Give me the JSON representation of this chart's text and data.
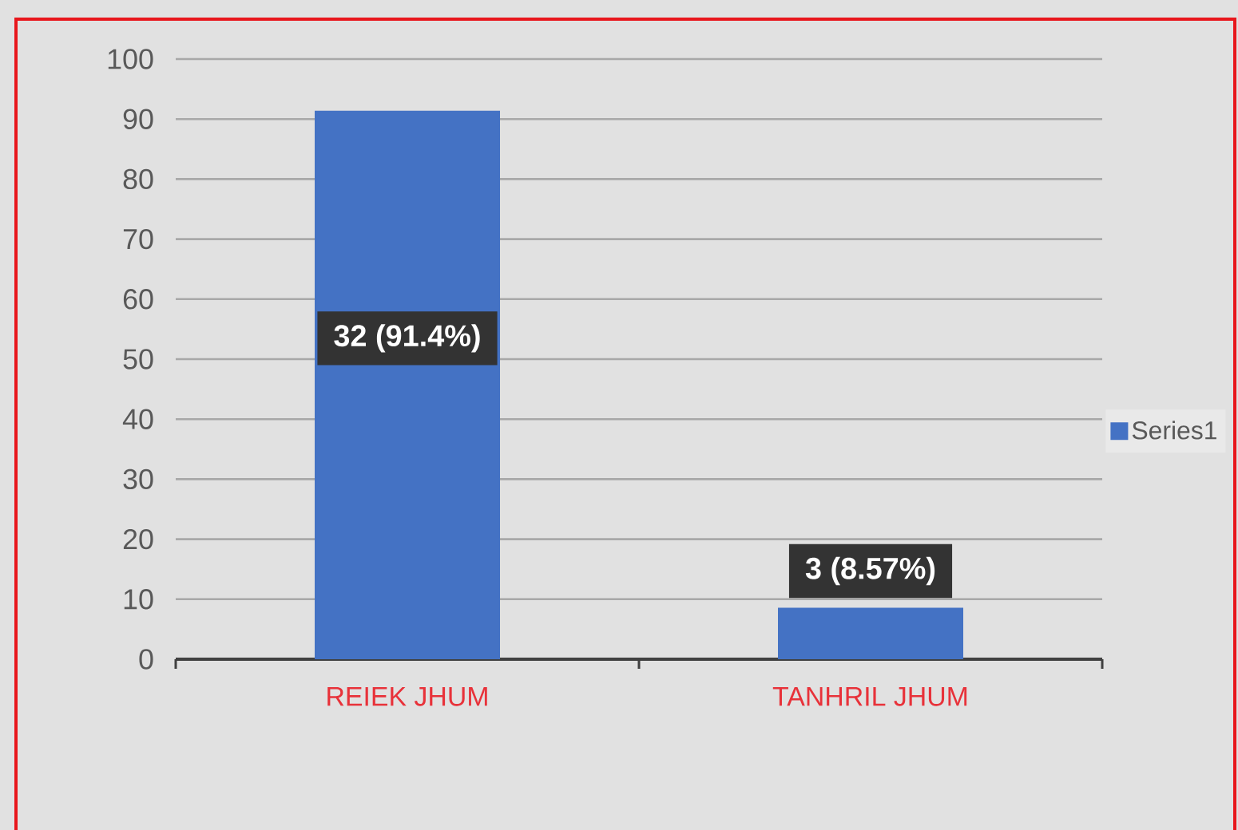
{
  "chart_data": {
    "type": "bar",
    "categories": [
      "REIEK JHUM",
      "TANHRIL JHUM"
    ],
    "series": [
      {
        "name": "Series1",
        "color": "#4472c4",
        "values": [
          91.4,
          8.57
        ],
        "value_labels": [
          "32 (91.4%)",
          "3 (8.57%)"
        ]
      }
    ],
    "ylim": [
      0,
      100
    ],
    "yticks": [
      0,
      10,
      20,
      30,
      40,
      50,
      60,
      70,
      80,
      90,
      100
    ],
    "grid": "y",
    "legend": "right"
  }
}
